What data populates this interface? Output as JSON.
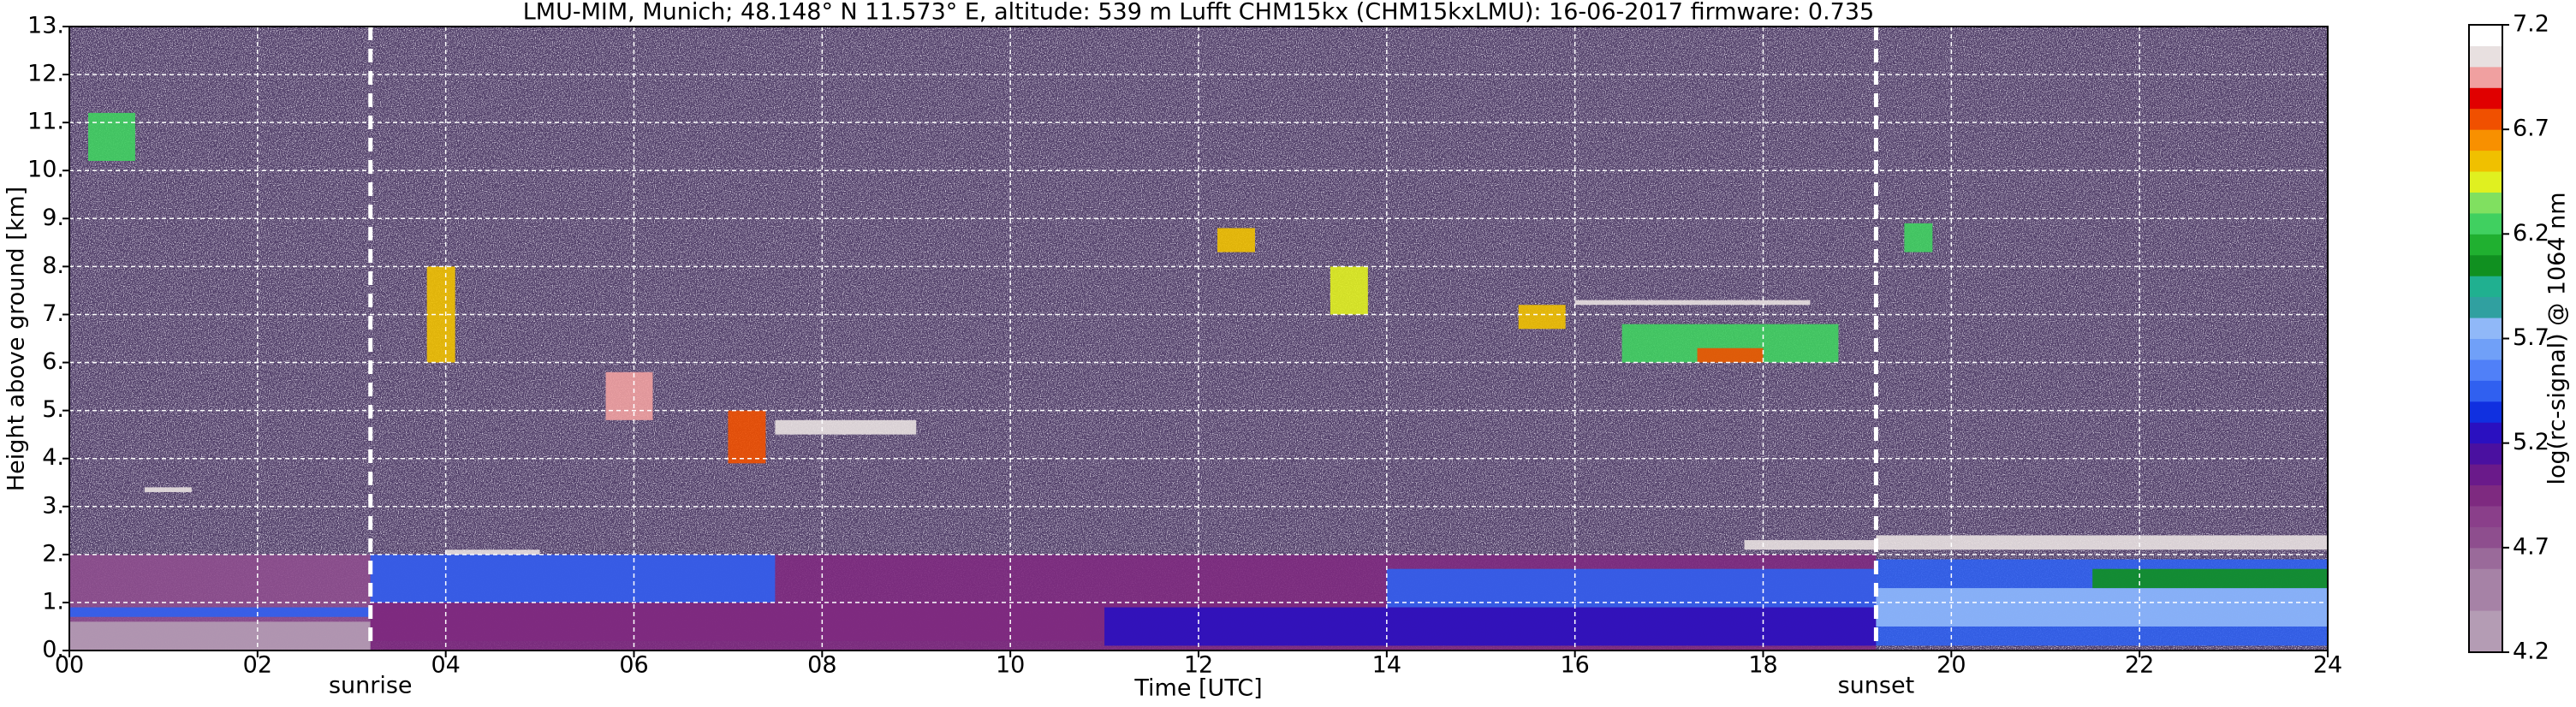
{
  "chart_data": {
    "type": "heatmap",
    "title": "LMU-MIM, Munich; 48.148° N 11.573° E, altitude: 539 m    Lufft CHM15kx (CHM15kxLMU): 16-06-2017    firmware: 0.735",
    "xlabel": "Time [UTC]",
    "ylabel": "Height above ground [km]",
    "xlim": [
      0,
      24
    ],
    "xticks": [
      {
        "value": 0,
        "label": "00"
      },
      {
        "value": 2,
        "label": "02"
      },
      {
        "value": 4,
        "label": "04"
      },
      {
        "value": 6,
        "label": "06"
      },
      {
        "value": 8,
        "label": "08"
      },
      10,
      12,
      14,
      16,
      18,
      20,
      22,
      24
    ],
    "ylim": [
      0,
      13
    ],
    "yticks": [
      {
        "value": 0,
        "label": "0."
      },
      {
        "value": 1,
        "label": "1."
      },
      {
        "value": 2,
        "label": "2."
      },
      {
        "value": 3,
        "label": "3."
      },
      {
        "value": 4,
        "label": "4."
      },
      {
        "value": 5,
        "label": "5."
      },
      {
        "value": 6,
        "label": "6."
      },
      {
        "value": 7,
        "label": "7."
      },
      {
        "value": 8,
        "label": "8."
      },
      {
        "value": 9,
        "label": "9."
      },
      {
        "value": 10,
        "label": "10."
      },
      {
        "value": 11,
        "label": "11."
      },
      {
        "value": 12,
        "label": "12."
      },
      {
        "value": 13,
        "label": "13."
      }
    ],
    "grid": true,
    "annotations": [
      {
        "x": 3.2,
        "label": "sunrise"
      },
      {
        "x": 19.2,
        "label": "sunset"
      }
    ],
    "colorbar": {
      "label": "log(rc-signal) @ 1064 nm",
      "clim": [
        4.2,
        7.2
      ],
      "ticks": [
        4.2,
        4.7,
        5.2,
        5.7,
        6.2,
        6.7,
        7.2
      ],
      "colors": [
        "#b49cb4",
        "#b49cb4",
        "#a682a6",
        "#a682a6",
        "#9a6a9a",
        "#8e4e8e",
        "#8a3f8a",
        "#7e2a80",
        "#6a1a8a",
        "#4a10a0",
        "#2a10c0",
        "#1030e0",
        "#3060f0",
        "#5080f8",
        "#70a0f8",
        "#90b8f8",
        "#30a0a0",
        "#20b090",
        "#109020",
        "#20b030",
        "#40d060",
        "#80e060",
        "#e0f020",
        "#f0c000",
        "#f89000",
        "#f05000",
        "#e00000",
        "#f0a0a0",
        "#e8e0e0",
        "#ffffff"
      ]
    },
    "features": [
      {
        "x": [
          0,
          3.2
        ],
        "y": [
          0,
          2.0
        ],
        "value": 4.7
      },
      {
        "x": [
          0,
          3.2
        ],
        "y": [
          0,
          0.6
        ],
        "value": 4.3
      },
      {
        "x": [
          0,
          3.2
        ],
        "y": [
          0.7,
          0.9
        ],
        "value": 5.5
      },
      {
        "x": [
          3.2,
          19.2
        ],
        "y": [
          0,
          2.0
        ],
        "value": 4.9
      },
      {
        "x": [
          3.2,
          19.2
        ],
        "y": [
          0.2,
          1.0
        ],
        "value": 5.0
      },
      {
        "x": [
          3.2,
          7.5
        ],
        "y": [
          1.0,
          2.0
        ],
        "value": 5.4
      },
      {
        "x": [
          11,
          19.2
        ],
        "y": [
          0.1,
          0.9
        ],
        "value": 5.3
      },
      {
        "x": [
          14,
          19.2
        ],
        "y": [
          0.9,
          1.7
        ],
        "value": 5.4
      },
      {
        "x": [
          19.2,
          24
        ],
        "y": [
          0.1,
          1.9
        ],
        "value": 5.5
      },
      {
        "x": [
          19.2,
          24
        ],
        "y": [
          0.5,
          1.3
        ],
        "value": 5.7
      },
      {
        "x": [
          21.5,
          24
        ],
        "y": [
          1.3,
          1.7
        ],
        "value": 6.1
      },
      {
        "x": [
          19.2,
          24
        ],
        "y": [
          2.1,
          2.4
        ],
        "value": 7.1
      },
      {
        "x": [
          17.8,
          19.2
        ],
        "y": [
          2.1,
          2.3
        ],
        "value": 7.1
      },
      {
        "x": [
          4.0,
          5.0
        ],
        "y": [
          2.0,
          2.1
        ],
        "value": 7.1
      },
      {
        "x": [
          0.8,
          1.3
        ],
        "y": [
          3.3,
          3.4
        ],
        "value": 7.1
      },
      {
        "x": [
          5.7,
          6.2
        ],
        "y": [
          4.8,
          5.8
        ],
        "value": 7.0
      },
      {
        "x": [
          7.0,
          7.4
        ],
        "y": [
          3.9,
          5.0
        ],
        "value": 6.8
      },
      {
        "x": [
          7.5,
          9.0
        ],
        "y": [
          4.5,
          4.8
        ],
        "value": 7.1
      },
      {
        "x": [
          3.8,
          4.1
        ],
        "y": [
          6.0,
          8.0
        ],
        "value": 6.6
      },
      {
        "x": [
          13.4,
          13.8
        ],
        "y": [
          7.0,
          8.0
        ],
        "value": 6.4
      },
      {
        "x": [
          16.5,
          18.8
        ],
        "y": [
          6.0,
          6.8
        ],
        "value": 6.3
      },
      {
        "x": [
          17.3,
          18.0
        ],
        "y": [
          6.0,
          6.3
        ],
        "value": 6.7
      },
      {
        "x": [
          15.4,
          15.9
        ],
        "y": [
          6.7,
          7.2
        ],
        "value": 6.6
      },
      {
        "x": [
          16.0,
          18.5
        ],
        "y": [
          7.2,
          7.3
        ],
        "value": 7.1
      },
      {
        "x": [
          12.2,
          12.6
        ],
        "y": [
          8.3,
          8.8
        ],
        "value": 6.5
      },
      {
        "x": [
          0.2,
          0.7
        ],
        "y": [
          10.2,
          11.2
        ],
        "value": 6.2
      },
      {
        "x": [
          19.5,
          19.8
        ],
        "y": [
          8.3,
          8.9
        ],
        "value": 6.2
      }
    ]
  }
}
